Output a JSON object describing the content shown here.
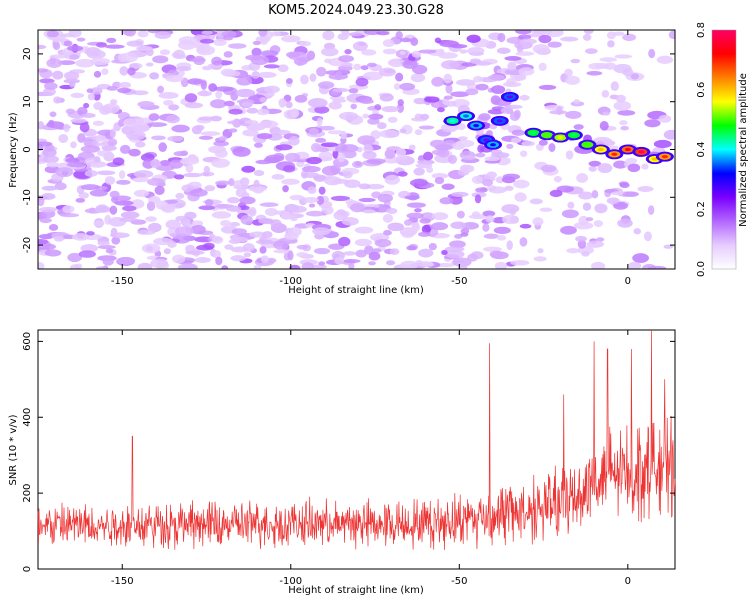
{
  "title": "KOM5.2024.049.23.30.G28",
  "chart_data": [
    {
      "type": "heatmap",
      "xlabel": "Height of straight line (km)",
      "ylabel": "Frequency (Hz)",
      "xlim": [
        -175,
        14
      ],
      "ylim": [
        -25,
        25
      ],
      "xticks": [
        "-150",
        "-100",
        "-50",
        "0"
      ],
      "xtick_values": [
        -150,
        -100,
        -50,
        0
      ],
      "yticks": [
        "-20",
        "-10",
        "0",
        "10",
        "20"
      ],
      "ytick_values": [
        -20,
        -10,
        0,
        10,
        20
      ],
      "colorbar": {
        "label": "Normalized spectral amplitude",
        "range": [
          0,
          0.8
        ],
        "ticks": [
          "0.0",
          "0.2",
          "0.4",
          "0.6",
          "0.8"
        ],
        "tick_values": [
          0,
          0.2,
          0.4,
          0.6,
          0.8
        ],
        "colormap": [
          "#ffffff",
          "#e6ccff",
          "#b366ff",
          "#7a00ff",
          "#0000ff",
          "#00ffff",
          "#00ff00",
          "#ffff00",
          "#ff8000",
          "#ff0000",
          "#ff0066"
        ]
      },
      "background": "speckled noise, amplitude ~0.0-0.2",
      "ridge": {
        "x": [
          -52,
          -48,
          -45,
          -42,
          -40,
          -38,
          -35,
          -28,
          -24,
          -20,
          -16,
          -12,
          -8,
          -4,
          0,
          4,
          8,
          11
        ],
        "y": [
          6,
          7,
          5,
          2,
          1,
          6,
          11,
          3.5,
          3,
          2.5,
          3,
          1,
          0,
          -1,
          0,
          -0.5,
          -2,
          -1.5
        ],
        "amplitude": [
          0.4,
          0.35,
          0.3,
          0.25,
          0.3,
          0.25,
          0.25,
          0.45,
          0.5,
          0.55,
          0.45,
          0.5,
          0.6,
          0.7,
          0.75,
          0.8,
          0.6,
          0.7
        ]
      }
    },
    {
      "type": "line",
      "xlabel": "Height of straight line (km)",
      "ylabel": "SNR (10 * v/v)",
      "xlim": [
        -175,
        14
      ],
      "ylim": [
        0,
        630
      ],
      "xticks": [
        "-150",
        "-100",
        "-50",
        "0"
      ],
      "xtick_values": [
        -150,
        -100,
        -50,
        0
      ],
      "yticks": [
        "0",
        "200",
        "400",
        "600"
      ],
      "ytick_values": [
        0,
        200,
        400,
        600
      ],
      "color": "#ee3333",
      "x_range": [
        -175,
        14
      ],
      "baseline_segments": [
        {
          "x": -175,
          "mean": 115,
          "spread": 55
        },
        {
          "x": -60,
          "mean": 120,
          "spread": 60
        },
        {
          "x": -40,
          "mean": 140,
          "spread": 75
        },
        {
          "x": -20,
          "mean": 170,
          "spread": 90
        },
        {
          "x": -10,
          "mean": 230,
          "spread": 110
        },
        {
          "x": 0,
          "mean": 260,
          "spread": 120
        },
        {
          "x": 14,
          "mean": 270,
          "spread": 120
        }
      ],
      "peaks": [
        {
          "x": -147,
          "y": 350
        },
        {
          "x": -41,
          "y": 595
        },
        {
          "x": -19,
          "y": 460
        },
        {
          "x": -10,
          "y": 600
        },
        {
          "x": -6,
          "y": 580
        },
        {
          "x": 1,
          "y": 580
        },
        {
          "x": 7,
          "y": 630
        },
        {
          "x": 11,
          "y": 500
        }
      ]
    }
  ]
}
